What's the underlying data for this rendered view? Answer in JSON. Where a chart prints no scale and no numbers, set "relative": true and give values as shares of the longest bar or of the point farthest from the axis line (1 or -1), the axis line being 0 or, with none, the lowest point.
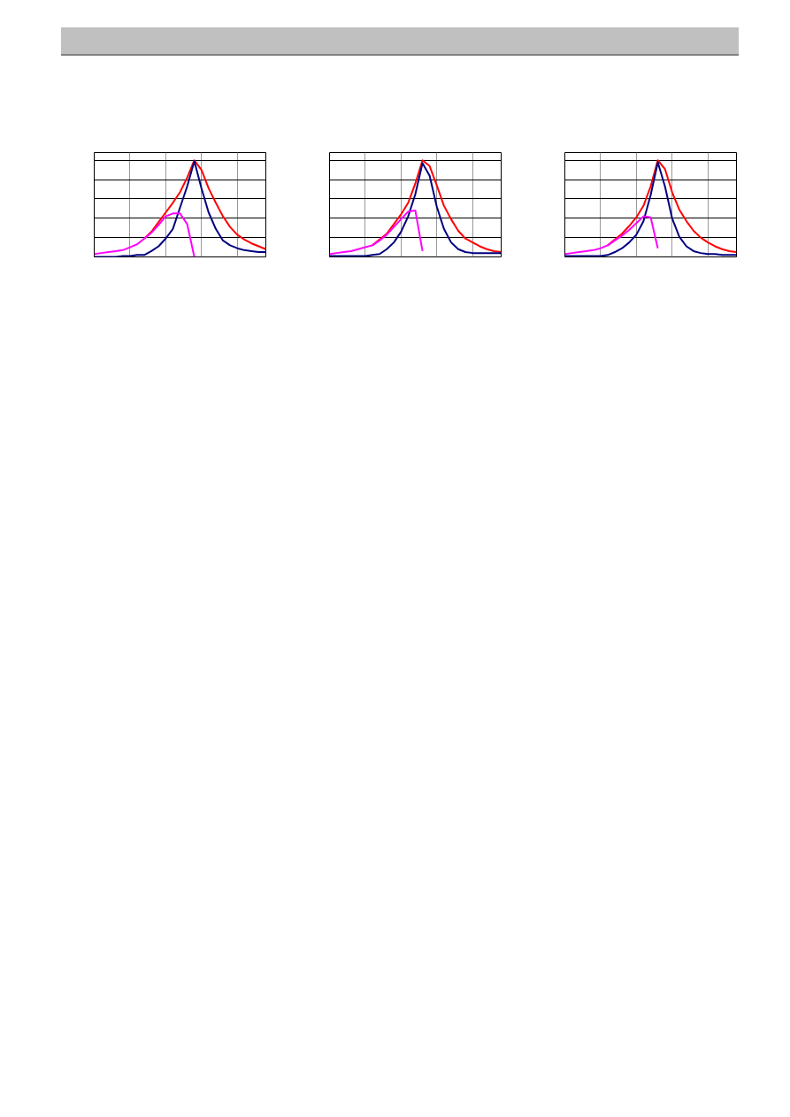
{
  "chart_data": [
    {
      "type": "line",
      "relative": true,
      "grid": true,
      "tick_labels": false,
      "categories": [
        null,
        null,
        null,
        null,
        null,
        null,
        null,
        null,
        null,
        null,
        null,
        null,
        null,
        null,
        null,
        null,
        null,
        null,
        null,
        null,
        null,
        null,
        null,
        null,
        null
      ],
      "series": [
        {
          "color": "#ff00ff",
          "values": [
            0.03,
            0.04,
            0.05,
            0.06,
            0.07,
            0.1,
            0.13,
            0.19,
            0.25,
            0.33,
            0.42,
            0.45,
            0.45,
            0.34,
            0,
            null,
            null,
            null,
            null,
            null,
            null,
            null,
            null,
            null,
            null
          ]
        },
        {
          "color": "#ff0000",
          "values": [
            null,
            null,
            null,
            null,
            null,
            null,
            null,
            0.19,
            0.26,
            0.36,
            0.46,
            0.56,
            0.67,
            0.82,
            1,
            0.9,
            0.71,
            0.56,
            0.42,
            0.31,
            0.23,
            0.18,
            0.14,
            0.11,
            0.08
          ]
        },
        {
          "color": "#000080",
          "values": [
            0,
            0,
            0,
            0,
            0.01,
            0.01,
            0.02,
            0.02,
            0.06,
            0.11,
            0.19,
            0.29,
            0.51,
            0.73,
            0.99,
            0.71,
            0.46,
            0.29,
            0.17,
            0.12,
            0.09,
            0.07,
            0.06,
            0.05,
            0.05
          ]
        }
      ]
    },
    {
      "type": "line",
      "relative": true,
      "grid": true,
      "tick_labels": false,
      "categories": [
        null,
        null,
        null,
        null,
        null,
        null,
        null,
        null,
        null,
        null,
        null,
        null,
        null,
        null,
        null,
        null,
        null,
        null,
        null,
        null,
        null,
        null,
        null,
        null,
        null
      ],
      "series": [
        {
          "color": "#ff00ff",
          "values": [
            0.03,
            0.04,
            0.05,
            0.06,
            0.08,
            0.1,
            0.12,
            0.17,
            0.23,
            0.31,
            0.39,
            0.47,
            0.48,
            0.06,
            null,
            null,
            null,
            null,
            null,
            null,
            null,
            null,
            null,
            null,
            null
          ]
        },
        {
          "color": "#ff0000",
          "values": [
            null,
            null,
            null,
            null,
            null,
            null,
            0.12,
            0.18,
            0.24,
            0.34,
            0.44,
            0.56,
            0.76,
            1,
            0.94,
            0.74,
            0.53,
            0.39,
            0.27,
            0.19,
            0.15,
            0.11,
            0.08,
            0.06,
            0.05
          ]
        },
        {
          "color": "#000080",
          "values": [
            0.01,
            0.01,
            0.01,
            0.01,
            0.01,
            0.01,
            0.02,
            0.03,
            0.08,
            0.15,
            0.26,
            0.42,
            0.65,
            0.97,
            0.84,
            0.52,
            0.29,
            0.15,
            0.08,
            0.05,
            0.04,
            0.04,
            0.04,
            0.04,
            0.04
          ]
        }
      ]
    },
    {
      "type": "line",
      "relative": true,
      "grid": true,
      "tick_labels": false,
      "categories": [
        null,
        null,
        null,
        null,
        null,
        null,
        null,
        null,
        null,
        null,
        null,
        null,
        null,
        null,
        null,
        null,
        null,
        null,
        null,
        null,
        null,
        null,
        null,
        null,
        null
      ],
      "series": [
        {
          "color": "#ff00ff",
          "values": [
            0.03,
            0.04,
            0.05,
            0.06,
            0.07,
            0.09,
            0.12,
            0.17,
            0.22,
            0.28,
            0.35,
            0.42,
            0.41,
            0.09,
            null,
            null,
            null,
            null,
            null,
            null,
            null,
            null,
            null,
            null,
            null
          ]
        },
        {
          "color": "#ff0000",
          "values": [
            null,
            null,
            null,
            null,
            null,
            null,
            0.12,
            0.18,
            0.24,
            0.32,
            0.41,
            0.53,
            0.73,
            1,
            0.91,
            0.67,
            0.49,
            0.37,
            0.27,
            0.2,
            0.15,
            0.11,
            0.08,
            0.06,
            0.05
          ]
        },
        {
          "color": "#000080",
          "values": [
            0.01,
            0.01,
            0.01,
            0.01,
            0.01,
            0.01,
            0.02,
            0.05,
            0.09,
            0.15,
            0.23,
            0.37,
            0.64,
            0.98,
            0.73,
            0.4,
            0.21,
            0.11,
            0.06,
            0.04,
            0.03,
            0.03,
            0.02,
            0.02,
            0.02
          ]
        }
      ]
    }
  ]
}
